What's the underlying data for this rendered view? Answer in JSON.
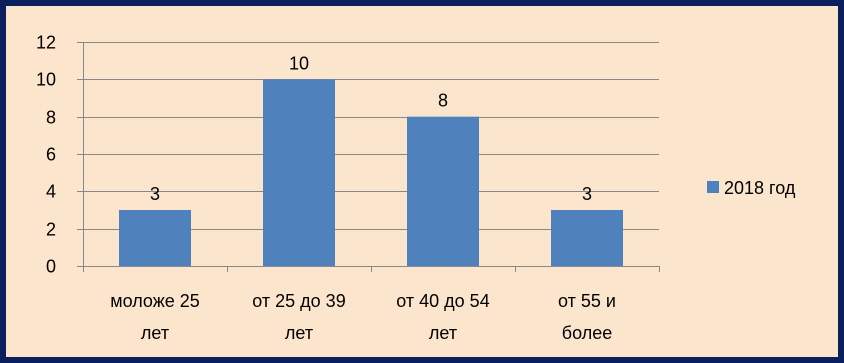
{
  "chart_data": {
    "type": "bar",
    "categories": [
      "моложе 25 лет",
      "от 25 до 39 лет",
      "от 40 до 54 лет",
      "от 55 и более"
    ],
    "category_lines": [
      [
        "моложе 25",
        "лет"
      ],
      [
        "от 25 до 39",
        "лет"
      ],
      [
        "от 40 до 54",
        "лет"
      ],
      [
        "от 55 и",
        "более"
      ]
    ],
    "series": [
      {
        "name": "2018 год",
        "values": [
          3,
          10,
          8,
          3
        ]
      }
    ],
    "data_labels": [
      "3",
      "10",
      "8",
      "3"
    ],
    "ylim": [
      0,
      12
    ],
    "yticks": [
      0,
      2,
      4,
      6,
      8,
      10,
      12
    ],
    "ytick_labels": [
      "0",
      "2",
      "4",
      "6",
      "8",
      "10",
      "12"
    ],
    "grid": true,
    "legend_position": "right",
    "colors": {
      "bar": "#4f81bd",
      "background": "#fce5cd",
      "border": "#0b1f5c",
      "gridline": "#888888",
      "axis": "#888888"
    }
  }
}
